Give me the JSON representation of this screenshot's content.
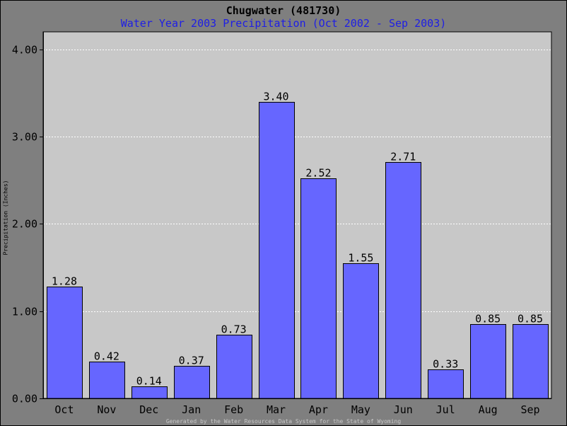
{
  "chart_data": {
    "type": "bar",
    "title": "Chugwater (481730)",
    "subtitle": "Water Year 2003 Precipitation (Oct 2002 - Sep 2003)",
    "xlabel": "",
    "ylabel": "Precipitation (Inches)",
    "categories": [
      "Oct",
      "Nov",
      "Dec",
      "Jan",
      "Feb",
      "Mar",
      "Apr",
      "May",
      "Jun",
      "Jul",
      "Aug",
      "Sep"
    ],
    "values": [
      1.28,
      0.42,
      0.14,
      0.37,
      0.73,
      3.4,
      2.52,
      1.55,
      2.71,
      0.33,
      0.85,
      0.85
    ],
    "data_labels": [
      "1.28",
      "0.42",
      "0.14",
      "0.37",
      "0.73",
      "3.40",
      "2.52",
      "1.55",
      "2.71",
      "0.33",
      "0.85",
      "0.85"
    ],
    "ylim": [
      0,
      4.0
    ],
    "yticks": [
      0,
      1,
      2,
      3,
      4
    ],
    "ytick_labels": [
      "0.00",
      "1.00",
      "2.00",
      "3.00",
      "4.00"
    ],
    "grid": true,
    "legend": "none",
    "colors": {
      "bar": "#6666ff",
      "plot_background": "#c8c8c8",
      "page_background": "#7f7f7f",
      "grid": "#ffffff",
      "subtitle": "#1e1ee6"
    }
  },
  "footer": "Generated by the Water Resources Data System for the State of Wyoming"
}
